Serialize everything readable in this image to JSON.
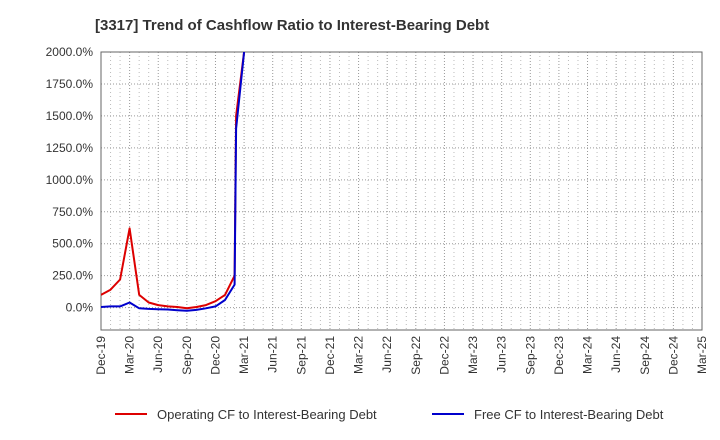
{
  "chart_data": {
    "type": "line",
    "title": "[3317]  Trend of Cashflow Ratio to Interest-Bearing Debt",
    "xlabel": "",
    "ylabel": "",
    "x_ticks": [
      "Dec-19",
      "Mar-20",
      "Jun-20",
      "Sep-20",
      "Dec-20",
      "Mar-21",
      "Jun-21",
      "Sep-21",
      "Dec-21",
      "Mar-22",
      "Jun-22",
      "Sep-22",
      "Dec-22",
      "Mar-23",
      "Jun-23",
      "Sep-23",
      "Dec-23",
      "Mar-24",
      "Jun-24",
      "Sep-24",
      "Dec-24",
      "Mar-25"
    ],
    "y_ticks": [
      "2000.0%",
      "1750.0%",
      "1500.0%",
      "1250.0%",
      "1000.0%",
      "750.0%",
      "500.0%",
      "250.0%",
      "0.0%"
    ],
    "ylim": [
      -175,
      2000
    ],
    "grid": true,
    "legend_position": "bottom",
    "series": [
      {
        "name": "Operating CF to Interest-Bearing Debt",
        "color": "#dd0000",
        "x": [
          "Dec-19",
          "Jan-20",
          "Feb-20",
          "Mar-20",
          "Apr-20",
          "May-20",
          "Jun-20",
          "Jul-20",
          "Aug-20",
          "Sep-20",
          "Oct-20",
          "Nov-20",
          "Dec-20",
          "Jan-21",
          "Feb-21",
          "Feb-21",
          "Mar-21"
        ],
        "y": [
          100,
          140,
          220,
          620,
          100,
          40,
          20,
          10,
          5,
          -5,
          5,
          20,
          50,
          100,
          250,
          1500,
          2000
        ]
      },
      {
        "name": "Free CF to Interest-Bearing Debt",
        "color": "#0000cc",
        "x": [
          "Dec-19",
          "Jan-20",
          "Feb-20",
          "Mar-20",
          "Apr-20",
          "May-20",
          "Jun-20",
          "Jul-20",
          "Aug-20",
          "Sep-20",
          "Oct-20",
          "Nov-20",
          "Dec-20",
          "Jan-21",
          "Feb-21",
          "Feb-21",
          "Mar-21"
        ],
        "y": [
          5,
          10,
          10,
          40,
          -5,
          -10,
          -12,
          -15,
          -20,
          -25,
          -18,
          -5,
          10,
          60,
          180,
          1400,
          2000
        ]
      }
    ]
  }
}
